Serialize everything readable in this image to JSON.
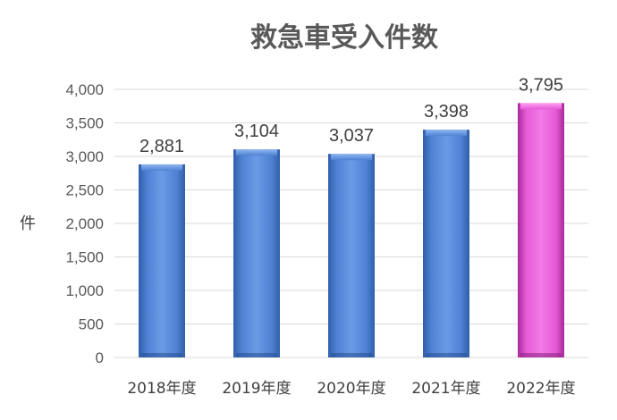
{
  "chart_data": {
    "type": "bar",
    "title": "救急車受入件数",
    "ylabel": "件",
    "xlabel": "",
    "categories": [
      "2018年度",
      "2019年度",
      "2020年度",
      "2021年度",
      "2022年度"
    ],
    "values": [
      2881,
      3104,
      3037,
      3398,
      3795
    ],
    "data_labels": [
      "2,881",
      "3,104",
      "3,037",
      "3,398",
      "3,795"
    ],
    "ylim": [
      0,
      4000
    ],
    "yticks": [
      0,
      500,
      1000,
      1500,
      2000,
      2500,
      3000,
      3500,
      4000
    ],
    "ytick_labels": [
      "0",
      "500",
      "1,000",
      "1,500",
      "2,000",
      "2,500",
      "3,000",
      "3,500",
      "4,000"
    ],
    "grid": true,
    "legend": "none",
    "colors": {
      "default_bar": "#4f81d4",
      "highlight_bar": "#e55ad6",
      "highlight_index": 4
    }
  }
}
